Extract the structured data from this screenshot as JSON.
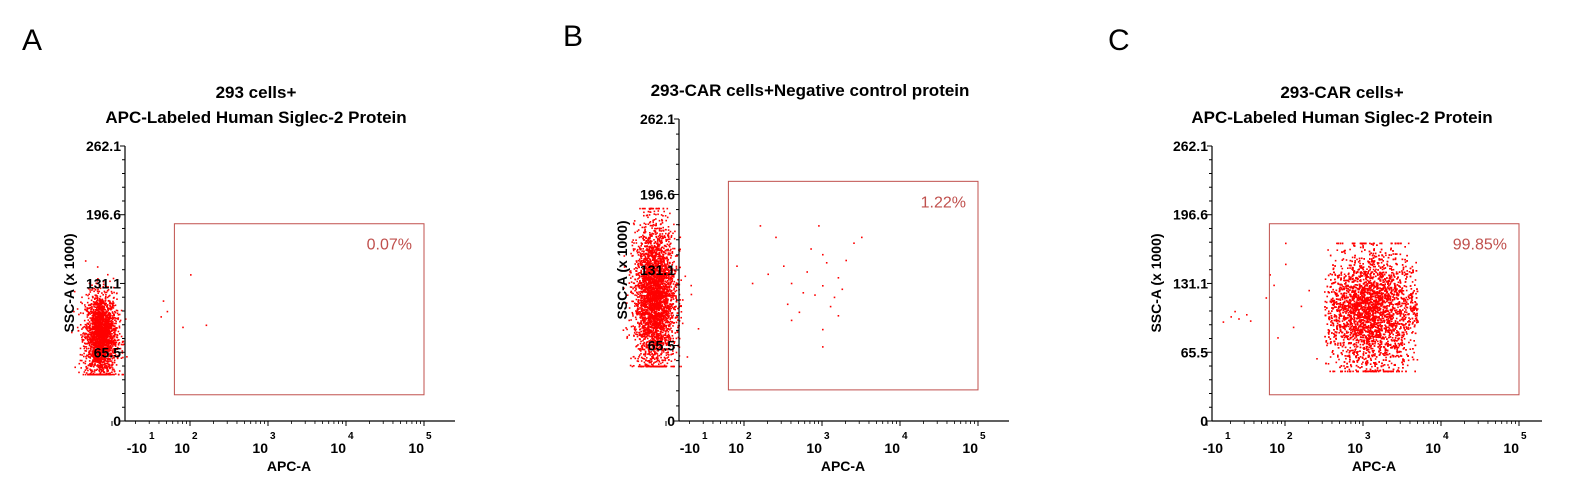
{
  "colors": {
    "points": "#ff0000",
    "gate": "#c0504d",
    "percent": "#c0504d",
    "axis": "#000000"
  },
  "chart_data": [
    {
      "type": "scatter",
      "panel": "A",
      "title": [
        "293 cells+",
        "APC-Labeled Human Siglec-2 Protein"
      ],
      "xlabel": "APC-A",
      "ylabel": "SSC-A (x 1000)",
      "x_scale": "log",
      "x_ticks": [
        {
          "base": "-10",
          "exp": "1"
        },
        {
          "base": "10",
          "exp": "2"
        },
        {
          "base": "10",
          "exp": "3"
        },
        {
          "base": "10",
          "exp": "4"
        },
        {
          "base": "10",
          "exp": "5"
        }
      ],
      "y_ticks": [
        "0",
        "65.5",
        "131.1",
        "196.6",
        "262.1"
      ],
      "ylim": [
        0,
        262.1
      ],
      "gate": {
        "x_range": [
          1.8,
          5.0
        ],
        "y_range": [
          25,
          188
        ],
        "percent": "0.07%"
      },
      "populations": [
        {
          "cx": 0.85,
          "sx": 0.1,
          "cy": 82,
          "sy": 20,
          "ymin": 45,
          "ymax": 165,
          "n": 2200
        }
      ],
      "sparse_points": [
        [
          1.62,
          100
        ],
        [
          1.65,
          115
        ],
        [
          1.9,
          90
        ],
        [
          2.2,
          92
        ],
        [
          2.0,
          140
        ],
        [
          1.7,
          105
        ]
      ]
    },
    {
      "type": "scatter",
      "panel": "B",
      "title": [
        "293-CAR cells+Negative control protein"
      ],
      "xlabel": "APC-A",
      "ylabel": "SSC-A (x 1000)",
      "x_scale": "log",
      "x_ticks": [
        {
          "base": "-10",
          "exp": "1"
        },
        {
          "base": "10",
          "exp": "2"
        },
        {
          "base": "10",
          "exp": "3"
        },
        {
          "base": "10",
          "exp": "4"
        },
        {
          "base": "10",
          "exp": "5"
        }
      ],
      "y_ticks": [
        "0",
        "65.5",
        "131.1",
        "196.6",
        "262.1"
      ],
      "ylim": [
        0,
        262.1
      ],
      "gate": {
        "x_range": [
          1.8,
          5.0
        ],
        "y_range": [
          27,
          208
        ],
        "percent": "1.22%"
      },
      "populations": [
        {
          "cx": 0.85,
          "sx": 0.13,
          "cy": 108,
          "sy": 30,
          "ymin": 48,
          "ymax": 185,
          "n": 3200
        }
      ],
      "sparse_points": [
        [
          2.6,
          120
        ],
        [
          2.8,
          130
        ],
        [
          2.9,
          110
        ],
        [
          3.0,
          145
        ],
        [
          3.1,
          100
        ],
        [
          2.7,
          95
        ],
        [
          3.2,
          125
        ],
        [
          3.3,
          140
        ],
        [
          2.5,
          135
        ],
        [
          3.0,
          118
        ],
        [
          2.85,
          150
        ],
        [
          3.15,
          108
        ],
        [
          3.4,
          155
        ],
        [
          2.4,
          160
        ],
        [
          2.2,
          170
        ],
        [
          3.0,
          80
        ],
        [
          3.0,
          65
        ],
        [
          2.6,
          88
        ],
        [
          3.2,
          92
        ],
        [
          2.95,
          170
        ],
        [
          3.5,
          160
        ],
        [
          2.1,
          120
        ],
        [
          1.9,
          135
        ],
        [
          2.3,
          128
        ],
        [
          3.05,
          138
        ],
        [
          2.75,
          112
        ],
        [
          3.25,
          115
        ],
        [
          2.55,
          102
        ]
      ]
    },
    {
      "type": "scatter",
      "panel": "C",
      "title": [
        "293-CAR cells+",
        "APC-Labeled Human Siglec-2 Protein"
      ],
      "xlabel": "APC-A",
      "ylabel": "SSC-A (x 1000)",
      "x_scale": "log",
      "x_ticks": [
        {
          "base": "-10",
          "exp": "1"
        },
        {
          "base": "10",
          "exp": "2"
        },
        {
          "base": "10",
          "exp": "3"
        },
        {
          "base": "10",
          "exp": "4"
        },
        {
          "base": "10",
          "exp": "5"
        }
      ],
      "y_ticks": [
        "0",
        "65.5",
        "131.1",
        "196.6",
        "262.1"
      ],
      "ylim": [
        0,
        262.1
      ],
      "gate": {
        "x_range": [
          1.8,
          5.0
        ],
        "y_range": [
          25,
          188
        ],
        "percent": "99.85%"
      },
      "populations": [
        {
          "cx": 3.1,
          "sx": 0.3,
          "cy": 105,
          "sy": 28,
          "ymin": 48,
          "ymax": 170,
          "xmin": 2.5,
          "xmax": 3.7,
          "n": 4200
        }
      ],
      "sparse_points": [
        [
          1.3,
          100
        ],
        [
          1.4,
          98
        ],
        [
          1.5,
          102
        ],
        [
          1.2,
          95
        ],
        [
          1.35,
          105
        ],
        [
          1.55,
          96
        ],
        [
          1.8,
          140
        ],
        [
          1.85,
          130
        ],
        [
          2.0,
          150
        ],
        [
          2.1,
          90
        ],
        [
          2.2,
          110
        ],
        [
          2.3,
          125
        ],
        [
          2.0,
          170
        ],
        [
          1.9,
          80
        ],
        [
          1.75,
          118
        ],
        [
          2.4,
          60
        ]
      ]
    }
  ]
}
